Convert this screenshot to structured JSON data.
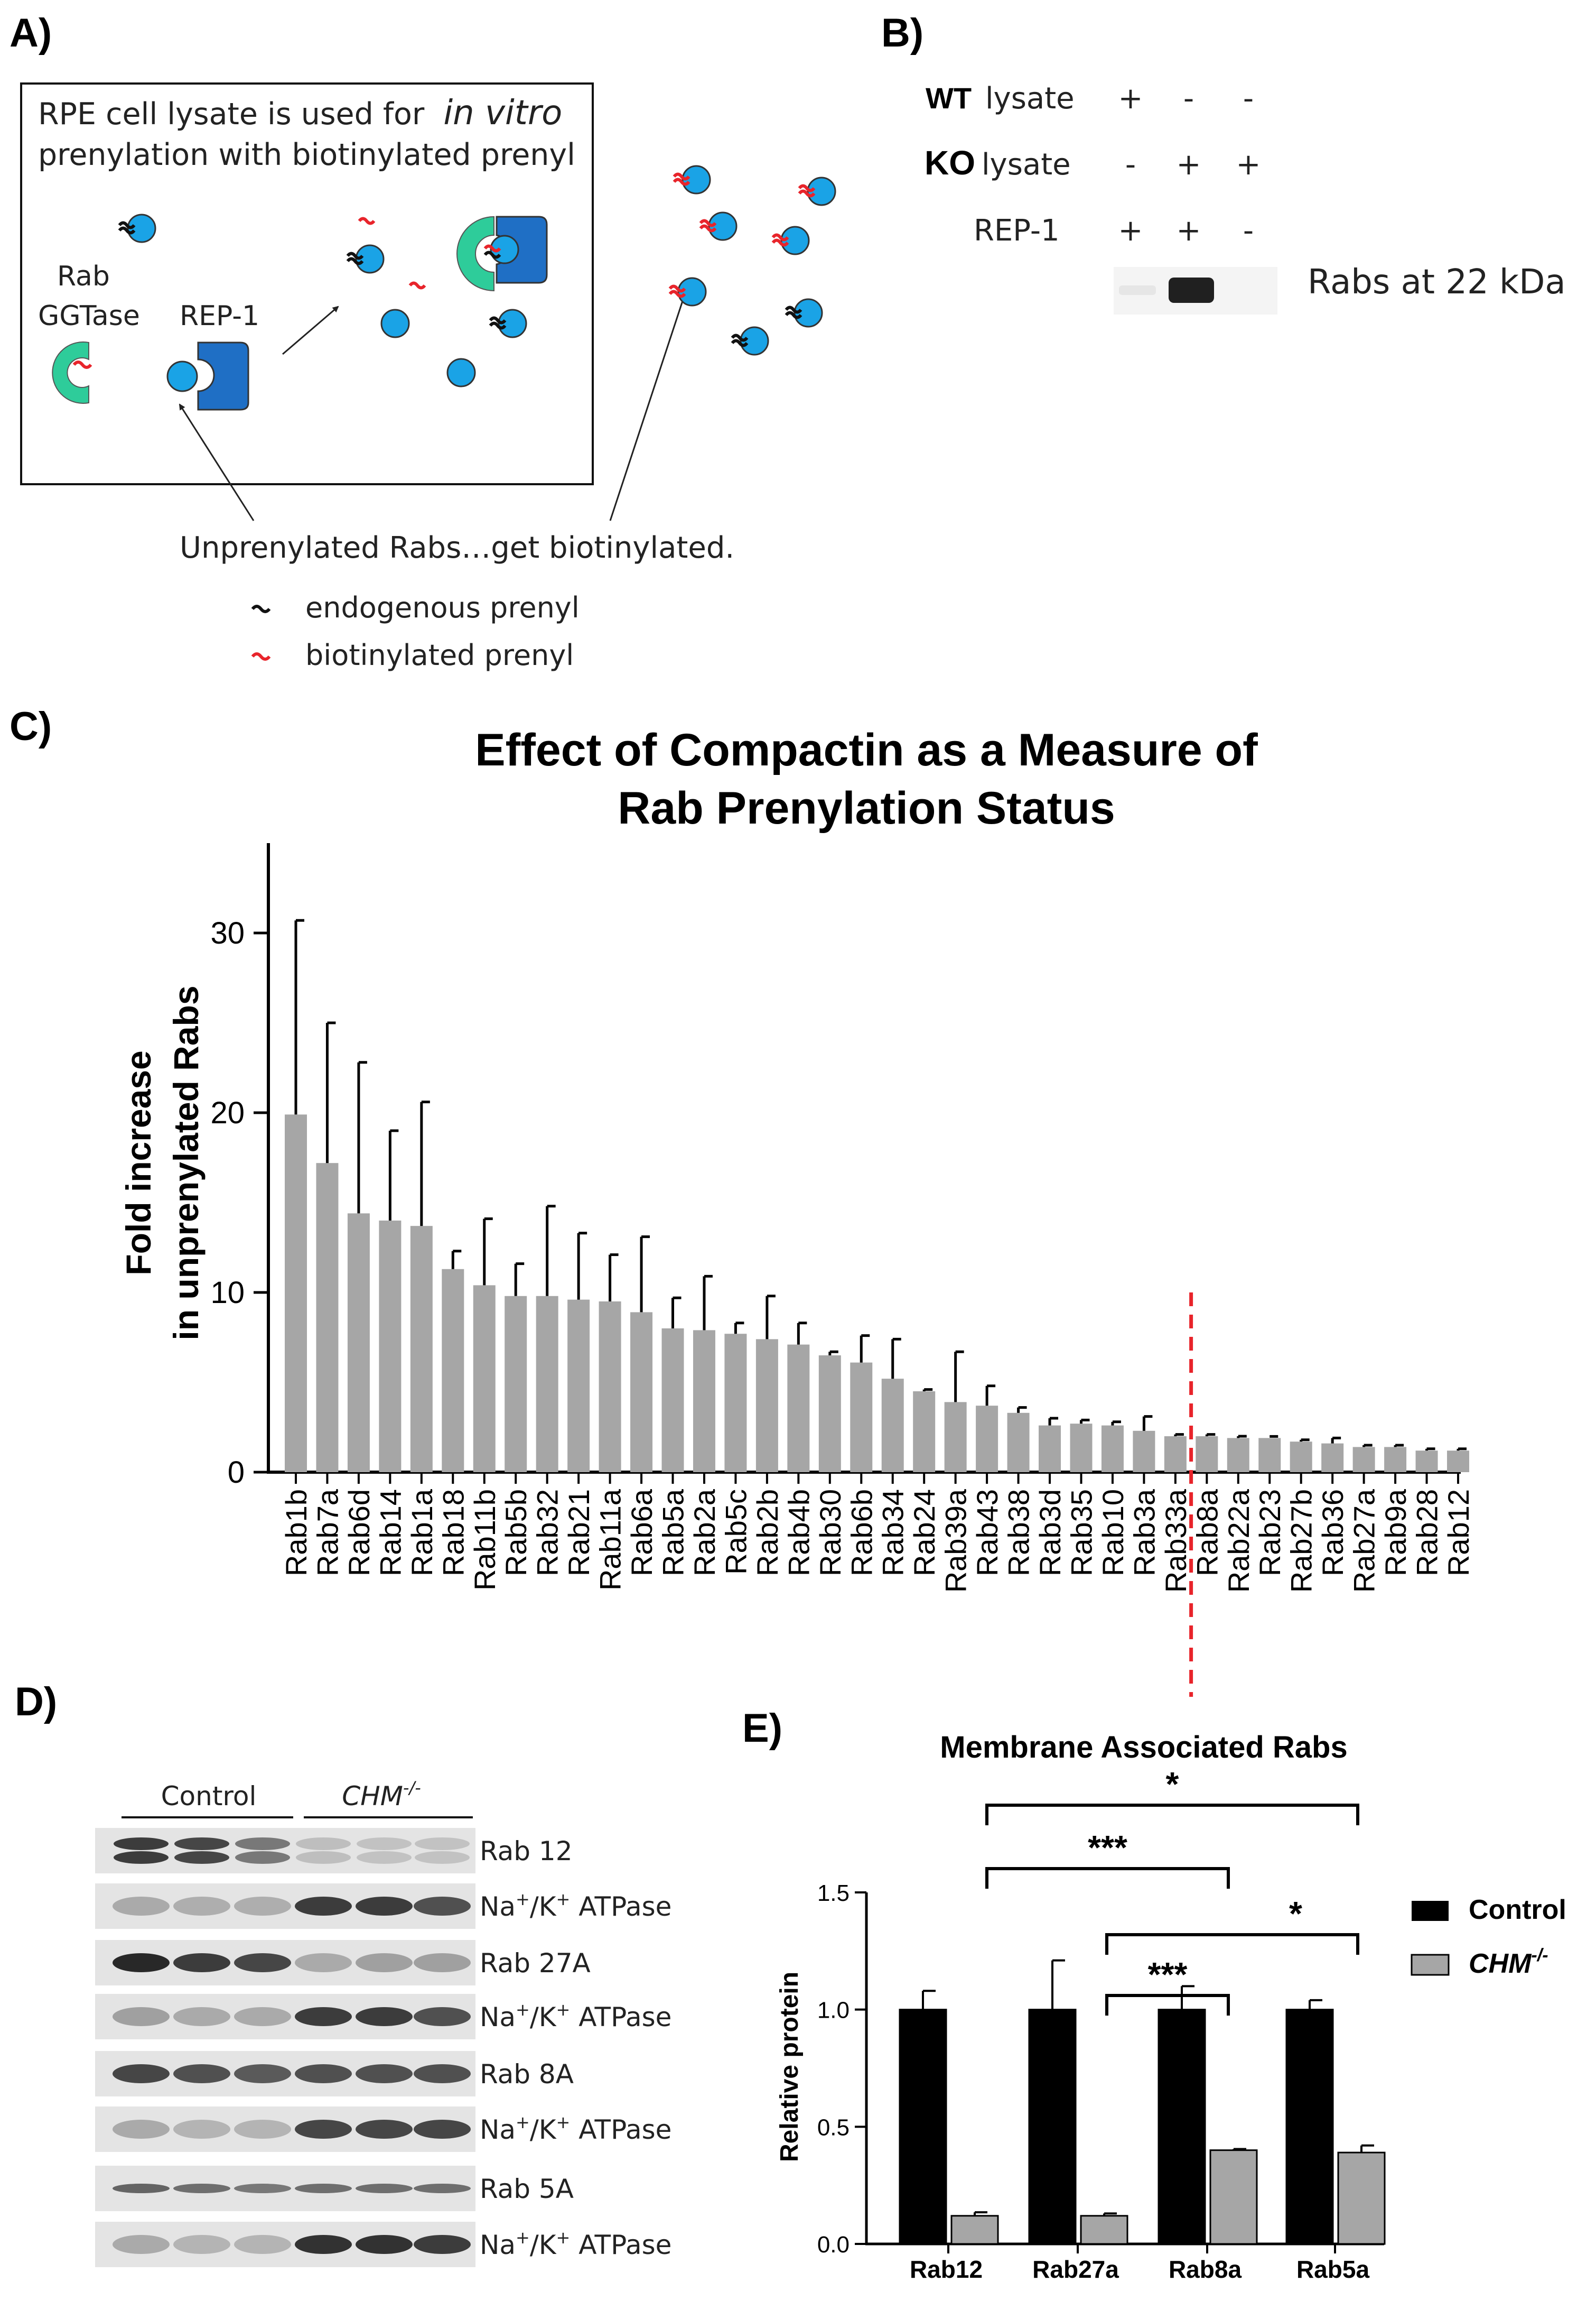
{
  "panels": {
    "a": "A)",
    "b": "B)",
    "c": "C)",
    "d": "D)",
    "e": "E)"
  },
  "panel_a": {
    "box_line1_prefix": "RPE cell lysate is used for",
    "box_line1_italic": "in vitro",
    "box_line2": "prenylation with biotinylated prenyl",
    "rab_ggtase_line1": "Rab",
    "rab_ggtase_line2": "GGTase",
    "rep1_label": "REP-1",
    "caption": "Unprenylated Rabs…get biotinylated.",
    "legend_endogenous": "endogenous prenyl",
    "legend_biotinylated": "biotinylated prenyl",
    "colors": {
      "rab": "#1aa3e6",
      "rep1": "#1f6fc5",
      "ggtase": "#2ecc9a",
      "biotin": "#e8242b",
      "endo": "#111111"
    }
  },
  "panel_b": {
    "rows": [
      {
        "bold": "WT",
        "rest": "lysate",
        "marks": [
          "+",
          "-",
          "-"
        ]
      },
      {
        "bold": "KO",
        "rest": "lysate",
        "marks": [
          "-",
          "+",
          "+"
        ]
      },
      {
        "bold": "",
        "rest": "REP-1",
        "marks": [
          "+",
          "+",
          "-"
        ]
      }
    ],
    "band_label": "Rabs at 22 kDa"
  },
  "chart_data": [
    {
      "type": "bar",
      "title_line1": "Effect of Compactin as a Measure of",
      "title_line2": "Rab Prenylation Status",
      "ylabel_line1": "Fold increase",
      "ylabel_line2": "in unprenylated Rabs",
      "ylim": [
        0,
        35
      ],
      "yticks": [
        0,
        10,
        20,
        30
      ],
      "categories": [
        "Rab1b",
        "Rab7a",
        "Rab6d",
        "Rab14",
        "Rab1a",
        "Rab18",
        "Rab11b",
        "Rab5b",
        "Rab32",
        "Rab21",
        "Rab11a",
        "Rab6a",
        "Rab5a",
        "Rab2a",
        "Rab5c",
        "Rab2b",
        "Rab4b",
        "Rab30",
        "Rab6b",
        "Rab34",
        "Rab24",
        "Rab39a",
        "Rab43",
        "Rab38",
        "Rab3d",
        "Rab35",
        "Rab10",
        "Rab3a",
        "Rab33a",
        "Rab8a",
        "Rab22a",
        "Rab23",
        "Rab27b",
        "Rab36",
        "Rab27a",
        "Rab9a",
        "Rab28",
        "Rab12"
      ],
      "values": [
        19.9,
        17.2,
        14.4,
        14.0,
        13.7,
        11.3,
        10.4,
        9.8,
        9.8,
        9.6,
        9.5,
        8.9,
        8.0,
        7.9,
        7.7,
        7.4,
        7.1,
        6.5,
        6.1,
        5.2,
        4.5,
        3.9,
        3.7,
        3.3,
        2.6,
        2.7,
        2.6,
        2.3,
        2.0,
        2.0,
        1.9,
        1.9,
        1.7,
        1.6,
        1.4,
        1.4,
        1.2,
        1.2
      ],
      "errors": [
        10.8,
        7.8,
        8.4,
        5.0,
        6.9,
        1.0,
        3.7,
        1.8,
        5.0,
        3.7,
        2.6,
        4.2,
        1.7,
        3.0,
        0.6,
        2.4,
        1.2,
        0.2,
        1.5,
        2.2,
        0.1,
        2.8,
        1.1,
        0.3,
        0.4,
        0.2,
        0.2,
        0.8,
        0.1,
        0.1,
        0.1,
        0.0,
        0.1,
        0.3,
        0.1,
        0.1,
        0.1,
        0.1
      ],
      "threshold_after": "Rab33a",
      "bar_color": "#a6a6a6",
      "threshold_color": "#e8242b"
    },
    {
      "type": "bar",
      "title": "Membrane Associated  Rabs",
      "ylabel": "Relative protein",
      "ylim": [
        0,
        1.5
      ],
      "yticks": [
        "0.0",
        "0.5",
        "1.0",
        "1.5"
      ],
      "categories": [
        "Rab12",
        "Rab27a",
        "Rab8a",
        "Rab5a"
      ],
      "series": [
        {
          "name": "Control",
          "values": [
            1.0,
            1.0,
            1.0,
            1.0
          ],
          "errors": [
            0.08,
            0.21,
            0.1,
            0.04
          ],
          "color": "#000000"
        },
        {
          "name": "CHM-/-",
          "values": [
            0.12,
            0.12,
            0.4,
            0.39
          ],
          "errors": [
            0.015,
            0.01,
            0.005,
            0.03
          ],
          "color": "#a6a6a6"
        }
      ],
      "legend_control": "Control",
      "legend_chm": "CHM",
      "legend_chm_sup": "-/-",
      "significance": [
        {
          "from": "Rab12",
          "to": "Rab5a",
          "label": "*"
        },
        {
          "from": "Rab12",
          "to": "Rab8a",
          "label": "***"
        },
        {
          "from": "Rab27a",
          "to": "Rab5a",
          "label": "*"
        },
        {
          "from": "Rab27a",
          "to": "Rab8a",
          "label": "***"
        }
      ]
    }
  ],
  "panel_d": {
    "group_control": "Control",
    "group_chm": "CHM",
    "group_chm_sup": "-/-",
    "blots": [
      {
        "label": "Rab 12",
        "intensity": [
          0.85,
          0.8,
          0.55,
          0.2,
          0.18,
          0.18
        ],
        "double": true
      },
      {
        "label_pre": "Na",
        "label_mid": "/K",
        "label_post": " ATPase",
        "intensity": [
          0.3,
          0.28,
          0.28,
          0.85,
          0.85,
          0.75
        ]
      },
      {
        "label": "Rab 27A",
        "intensity": [
          0.95,
          0.85,
          0.8,
          0.3,
          0.35,
          0.35
        ]
      },
      {
        "label_pre": "Na",
        "label_mid": "/K",
        "label_post": " ATPase",
        "intensity": [
          0.35,
          0.3,
          0.3,
          0.85,
          0.85,
          0.75
        ]
      },
      {
        "label": "Rab 8A",
        "intensity": [
          0.8,
          0.75,
          0.7,
          0.75,
          0.75,
          0.75
        ]
      },
      {
        "label_pre": "Na",
        "label_mid": "/K",
        "label_post": " ATPase",
        "intensity": [
          0.3,
          0.25,
          0.25,
          0.8,
          0.8,
          0.8
        ]
      },
      {
        "label": "Rab 5A",
        "intensity": [
          0.65,
          0.6,
          0.55,
          0.6,
          0.6,
          0.6
        ],
        "thin": true
      },
      {
        "label_pre": "Na",
        "label_mid": "/K",
        "label_post": " ATPase",
        "intensity": [
          0.3,
          0.25,
          0.25,
          0.9,
          0.9,
          0.85
        ]
      }
    ],
    "sup_plus": "+"
  }
}
